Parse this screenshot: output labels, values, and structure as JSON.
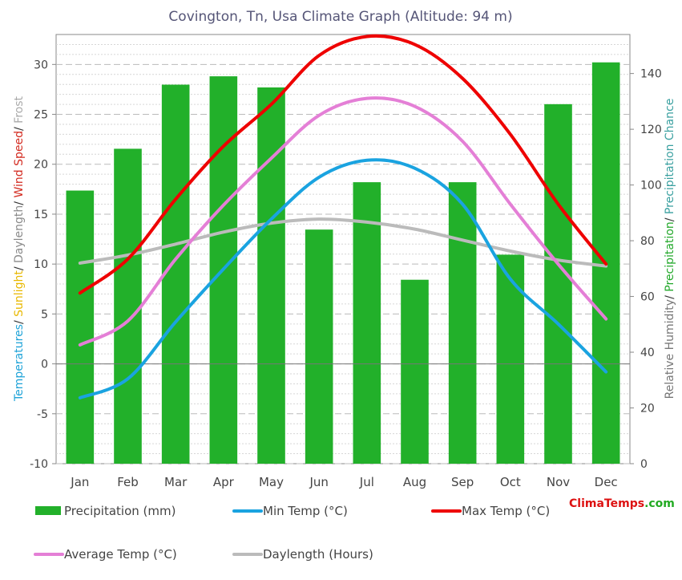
{
  "chart_data": {
    "type": "bar",
    "title": "Covington, Tn, Usa Climate Graph (Altitude: 94 m)",
    "categories": [
      "Jan",
      "Feb",
      "Mar",
      "Apr",
      "May",
      "Jun",
      "Jul",
      "Aug",
      "Sep",
      "Oct",
      "Nov",
      "Dec"
    ],
    "left_axis": {
      "label_parts": [
        {
          "text": "Temperatures",
          "color": "#1fa3d8"
        },
        {
          "text": "/ ",
          "color": "#333333"
        },
        {
          "text": "Sunlight",
          "color": "#e8b800"
        },
        {
          "text": "/ ",
          "color": "#333333"
        },
        {
          "text": "Daylength",
          "color": "#8a8a8a"
        },
        {
          "text": "/ ",
          "color": "#333333"
        },
        {
          "text": "Wind Speed",
          "color": "#d32a1f"
        },
        {
          "text": "/ ",
          "color": "#333333"
        },
        {
          "text": "Frost",
          "color": "#aaaaaa"
        }
      ],
      "range": [
        -10,
        33
      ],
      "ticks": [
        -10,
        -5,
        0,
        5,
        10,
        15,
        20,
        25,
        30
      ],
      "tick_labels": [
        "-10",
        "-5",
        "0",
        "5",
        "10",
        "15",
        "20",
        "25",
        "30"
      ]
    },
    "right_axis": {
      "label_parts": [
        {
          "text": "Relative Humidity",
          "color": "#777777"
        },
        {
          "text": "/ ",
          "color": "#333333"
        },
        {
          "text": "Precipitation",
          "color": "#22a82a"
        },
        {
          "text": "/ ",
          "color": "#333333"
        },
        {
          "text": "Precipitation Chance",
          "color": "#3aa0a0"
        }
      ],
      "range": [
        0,
        154
      ],
      "ticks": [
        0,
        20,
        40,
        60,
        80,
        100,
        120,
        140
      ],
      "tick_labels": [
        "0",
        "20",
        "40",
        "60",
        "80",
        "100",
        "120",
        "140"
      ]
    },
    "series": [
      {
        "name": "Precipitation (mm)",
        "kind": "bar",
        "axis": "right",
        "color": "#22b02a",
        "values": [
          98,
          113,
          136,
          139,
          135,
          84,
          101,
          66,
          101,
          75,
          129,
          144
        ]
      },
      {
        "name": "Min Temp (°C)",
        "kind": "line",
        "axis": "left",
        "color": "#1aa3e0",
        "values": [
          -3.4,
          -1.5,
          4.2,
          9.5,
          14.5,
          18.7,
          20.4,
          19.6,
          16.0,
          8.5,
          4.0,
          -0.8
        ]
      },
      {
        "name": "Max Temp (°C)",
        "kind": "line",
        "axis": "left",
        "color": "#ee0000",
        "values": [
          7.1,
          10.5,
          16.5,
          21.8,
          26.0,
          30.9,
          32.8,
          32.0,
          28.6,
          23.0,
          16.0,
          10.0
        ]
      },
      {
        "name": "Average Temp (°C)",
        "kind": "line",
        "axis": "left",
        "color": "#e47fd6",
        "values": [
          1.9,
          4.3,
          10.5,
          15.9,
          20.6,
          24.9,
          26.6,
          25.8,
          22.3,
          16.0,
          10.0,
          4.5
        ]
      },
      {
        "name": "Daylength (Hours)",
        "kind": "line",
        "axis": "left",
        "color": "#bbbbbb",
        "values": [
          10.1,
          10.9,
          12.0,
          13.2,
          14.1,
          14.5,
          14.2,
          13.5,
          12.4,
          11.3,
          10.4,
          9.8
        ]
      }
    ],
    "grid": true,
    "legend": {
      "position": "bottom"
    }
  },
  "brand": {
    "part1": "Clima",
    "part2": "Temps",
    "part3": ".com",
    "color1": "#dd1111",
    "color2": "#dd1111",
    "color3": "#22aa22"
  }
}
